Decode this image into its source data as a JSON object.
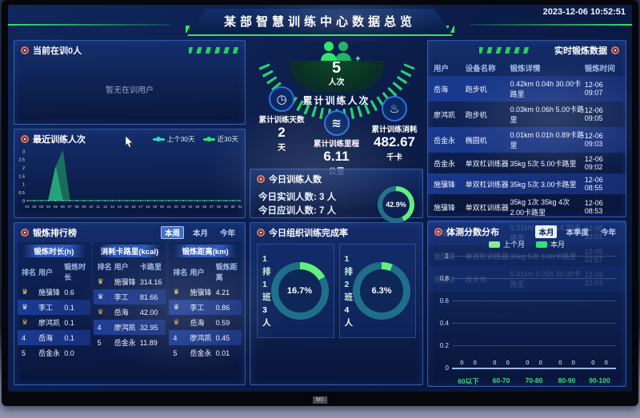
{
  "header": {
    "title": "某部智慧训练中心数据总览",
    "timestamp": "2023-12-06 10:52:51"
  },
  "brand": "MI",
  "panels": {
    "current": {
      "title": "当前在训0人",
      "empty": "暂无在训用户"
    },
    "recent": {
      "title": "最近训练人次",
      "legend": [
        {
          "label": "上个30天",
          "color": "#35d6c3"
        },
        {
          "label": "近30天",
          "color": "#2ee56a"
        }
      ]
    },
    "ranking": {
      "title": "锻炼排行榜",
      "tabs": [
        {
          "label": "本周",
          "active": true
        },
        {
          "label": "本月",
          "active": false
        },
        {
          "label": "今年",
          "active": false
        }
      ],
      "boards": [
        {
          "group": "锻炼时长(h)",
          "cols": [
            "排名",
            "用户",
            "锻炼时长"
          ],
          "rows": [
            [
              "1",
              "施骥锋",
              "0.6"
            ],
            [
              "2",
              "李工",
              "0.1"
            ],
            [
              "3",
              "廖鸿凯",
              "0.1"
            ],
            [
              "4",
              "岳海",
              "0.1"
            ],
            [
              "5",
              "岳金永",
              "0.0"
            ]
          ]
        },
        {
          "group": "消耗卡路里(kcal)",
          "cols": [
            "排名",
            "用户",
            "卡路里"
          ],
          "rows": [
            [
              "1",
              "施骥锋",
              "314.16"
            ],
            [
              "2",
              "李工",
              "81.66"
            ],
            [
              "3",
              "岳海",
              "42.00"
            ],
            [
              "4",
              "廖鸿凯",
              "32.95"
            ],
            [
              "5",
              "岳金永",
              "11.89"
            ]
          ]
        },
        {
          "group": "锻炼距离(km)",
          "cols": [
            "排名",
            "用户",
            "锻炼距离"
          ],
          "rows": [
            [
              "1",
              "施骥锋",
              "4.21"
            ],
            [
              "2",
              "李工",
              "0.86"
            ],
            [
              "3",
              "岳海",
              "0.59"
            ],
            [
              "4",
              "廖鸿凯",
              "0.45"
            ],
            [
              "5",
              "岳金永",
              "0.01"
            ]
          ]
        }
      ]
    },
    "stats": {
      "main": {
        "value": "5",
        "unit": "人次",
        "label": "累计训练人次",
        "plus": "+"
      },
      "items": [
        {
          "label": "累计训练天数",
          "value": "2",
          "unit": "天",
          "icon": "clock-icon",
          "glyph": "◷"
        },
        {
          "label": "累计训练里程",
          "value": "6.11",
          "unit": "公里",
          "icon": "odometer-icon",
          "glyph": "≋"
        },
        {
          "label": "累计训练消耗",
          "value": "482.67",
          "unit": "千卡",
          "icon": "flame-icon",
          "glyph": "♨"
        }
      ]
    },
    "today": {
      "title": "今日训练人数",
      "lines": [
        {
          "label": "今日实训人数:",
          "value": "3 人"
        },
        {
          "label": "今日应训人数:",
          "value": "7 人"
        }
      ],
      "percent": 42.9,
      "percent_label": "42.9%"
    },
    "org": {
      "title": "今日组织训练完成率",
      "cards": [
        {
          "name": "1排1班",
          "count": "3 人",
          "percent": 16.7,
          "percent_label": "16.7%"
        },
        {
          "name": "1排2班",
          "count": "4 人",
          "percent": 6.3,
          "percent_label": "6.3%"
        }
      ]
    },
    "realtime": {
      "title": "实时锻炼数据",
      "cols": [
        "用户",
        "设备名称",
        "锻炼详情",
        "锻炼时间"
      ],
      "rows": [
        [
          "岳海",
          "跑步机",
          "0.42km 0.04h 30.00卡路里",
          "12-06 09:07"
        ],
        [
          "廖鸿凯",
          "跑步机",
          "0.03km 0.06h 5.00卡路里",
          "12-06 09:05"
        ],
        [
          "岳金永",
          "椭圆机",
          "0.01km 0.01h 0.89卡路里",
          "12-06 09:03"
        ],
        [
          "岳金永",
          "单双杠训练器",
          "35kg 5次 5.00卡路里",
          "12-06 09:02"
        ],
        [
          "施骥锋",
          "单双杠训练器",
          "35kg 5次 3.00卡路里",
          "12-06 08:55"
        ],
        [
          "施骥锋",
          "单双杠训练器",
          "35kg 1次 35kg 4次 2.00卡路里",
          "12-06 08:53"
        ],
        [
          "施骥锋",
          "椭圆机",
          "0.31km 0.05h 14.73卡路里",
          "12-05 23:01"
        ],
        [
          "施骥锋",
          "单双杠训练器",
          "35kg 5次 3.00卡路里",
          "12-05 22:57"
        ],
        [
          "施骥锋",
          "跑步机",
          "0.41km 0.05h 30.00卡路里",
          "12-05 22:53"
        ]
      ]
    },
    "score": {
      "title": "体测分数分布",
      "legend": [
        {
          "label": "上个月",
          "color": "#8aec8a"
        },
        {
          "label": "本月",
          "color": "#2ee56e"
        }
      ],
      "tabs": [
        {
          "label": "本月",
          "active": true
        },
        {
          "label": "本季度",
          "active": false
        },
        {
          "label": "今年",
          "active": false
        }
      ]
    }
  },
  "chart_data": [
    {
      "type": "area",
      "title": "最近训练人次",
      "x": [
        "01",
        "02",
        "03",
        "04",
        "05",
        "06",
        "07",
        "08",
        "09",
        "10",
        "11",
        "12",
        "13",
        "14",
        "15",
        "16",
        "17",
        "18",
        "19",
        "20",
        "21",
        "22",
        "23",
        "24",
        "25",
        "26",
        "27",
        "28",
        "29",
        "30",
        "31"
      ],
      "series": [
        {
          "name": "上个30天",
          "color": "#35d6c3",
          "values": [
            0,
            0,
            0,
            0,
            2,
            0,
            0,
            0,
            0,
            0,
            0,
            0,
            0,
            0,
            0,
            0,
            0,
            0,
            0,
            0,
            0,
            0,
            0,
            0,
            0,
            0,
            0,
            0,
            0,
            0,
            0
          ]
        },
        {
          "name": "近30天",
          "color": "#2ee56a",
          "values": [
            0,
            0,
            0,
            0,
            2,
            3,
            0,
            0,
            0,
            0,
            0,
            0,
            0,
            0,
            0,
            0,
            0,
            0,
            0,
            0,
            0,
            0,
            0,
            0,
            0,
            0,
            0,
            0,
            0,
            0,
            0
          ]
        }
      ],
      "ylim": [
        0,
        3
      ],
      "yticks": [
        0,
        0.5,
        1,
        1.5,
        2,
        2.5,
        3
      ],
      "grid": false,
      "legend_position": "top-right"
    },
    {
      "type": "bar",
      "title": "体测分数分布",
      "categories": [
        "60以下",
        "60-70",
        "70-80",
        "80-90",
        "90-100"
      ],
      "series": [
        {
          "name": "上个月",
          "values": [
            0,
            0,
            0,
            0,
            0
          ]
        },
        {
          "name": "本月",
          "values": [
            0,
            0,
            0,
            0,
            0
          ]
        }
      ],
      "ylim": [
        0,
        1
      ],
      "yticks": [
        0,
        0.2,
        0.4,
        0.6,
        0.8,
        1
      ],
      "grid": true,
      "show_value_labels": true,
      "legend_position": "top-center"
    }
  ]
}
